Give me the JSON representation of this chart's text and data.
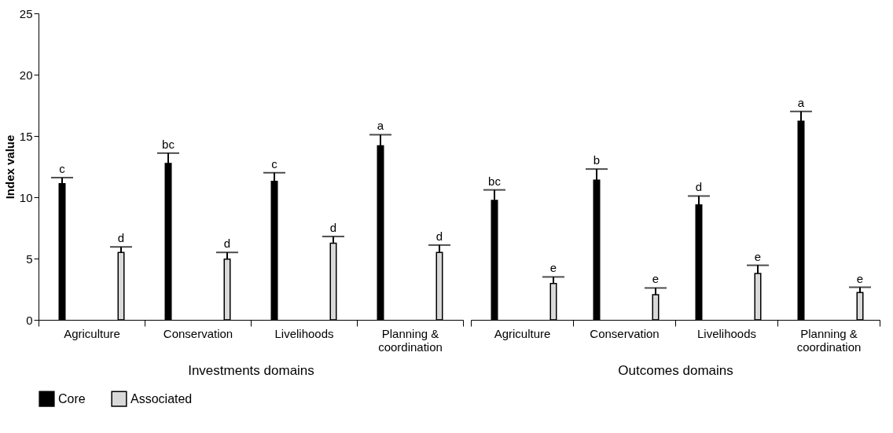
{
  "chart_data": [
    {
      "type": "bar",
      "xlabel": "Investments domains",
      "ylabel": "Index value",
      "categories": [
        "Agriculture",
        "Conservation",
        "Livelihoods",
        "Planning & coordination"
      ],
      "series": [
        {
          "name": "Core",
          "color": "#000000",
          "values": [
            11.1,
            12.75,
            11.3,
            14.2
          ],
          "errors": [
            [
              11.1,
              11.6
            ],
            [
              12.75,
              13.6
            ],
            [
              11.3,
              12.0
            ],
            [
              14.2,
              15.1
            ]
          ],
          "value_labels": [
            "c",
            "bc",
            "c",
            "a"
          ]
        },
        {
          "name": "Associated",
          "color": "#d9d9d9",
          "values": [
            5.5,
            4.95,
            6.25,
            5.5
          ],
          "errors": [
            [
              5.5,
              5.95
            ],
            [
              4.95,
              5.5
            ],
            [
              6.25,
              6.8
            ],
            [
              5.5,
              6.1
            ]
          ],
          "value_labels": [
            "d",
            "d",
            "d",
            "d"
          ]
        }
      ],
      "ylim": [
        0,
        25
      ],
      "yticks": [
        0,
        5,
        10,
        15,
        20,
        25
      ],
      "grid": false,
      "legend": "bottom"
    },
    {
      "type": "bar",
      "xlabel": "Outcomes domains",
      "categories": [
        "Agriculture",
        "Conservation",
        "Livelihoods",
        "Planning & coordination"
      ],
      "series": [
        {
          "name": "Core",
          "color": "#000000",
          "values": [
            9.74,
            11.4,
            9.37,
            16.2
          ],
          "errors": [
            [
              9.74,
              10.6
            ],
            [
              11.4,
              12.3
            ],
            [
              9.37,
              10.1
            ],
            [
              16.2,
              17.0
            ]
          ],
          "value_labels": [
            "bc",
            "b",
            "d",
            "a"
          ]
        },
        {
          "name": "Associated",
          "color": "#d9d9d9",
          "values": [
            2.97,
            2.05,
            3.78,
            2.23
          ],
          "errors": [
            [
              2.97,
              3.5
            ],
            [
              2.05,
              2.6
            ],
            [
              3.78,
              4.45
            ],
            [
              2.23,
              2.66
            ]
          ],
          "value_labels": [
            "e",
            "e",
            "e",
            "e"
          ]
        }
      ],
      "ylim": [
        0,
        25
      ],
      "yticks": [
        0,
        5,
        10,
        15,
        20,
        25
      ],
      "tick_labels": "x",
      "grid": false,
      "legend": "bottom"
    }
  ]
}
